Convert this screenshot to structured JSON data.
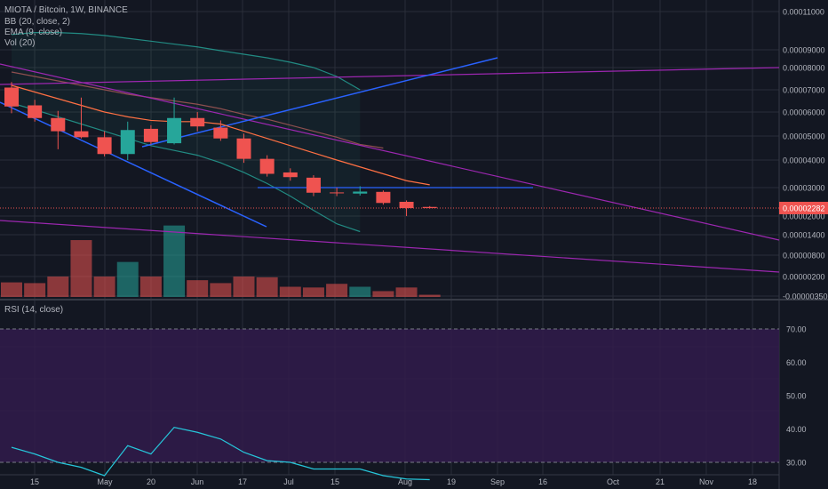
{
  "legend": {
    "title": "MIOTA / Bitcoin, 1W, BINANCE",
    "bb": "BB (20, close, 2)",
    "ema": "EMA (9, close)",
    "vol": "Vol (20)",
    "rsi": "RSI (14, close)"
  },
  "colors": {
    "background": "#131722",
    "grid": "#2a2e39",
    "up": "#26a69a",
    "down": "#ef5350",
    "bb_band": "#26a69a",
    "bb_basis": "#8d4f4f",
    "ema": "#ff7043",
    "trendline_blue": "#2962ff",
    "trendline_purple": "#9c27b0",
    "rsi_line": "#26c6da",
    "rsi_band_fill": "#311b4b",
    "price_tag": "#ef5350",
    "label_text": "#b2b5be"
  },
  "chart_data": [
    {
      "type": "candlestick",
      "title": "MIOTA / Bitcoin, 1W, BINANCE",
      "y_scale": "linear",
      "y_ticks": [
        "0.00011000",
        "0.00009000",
        "0.00008000",
        "0.00007000",
        "0.00006000",
        "0.00005000",
        "0.00004000",
        "0.00003000",
        "0.00002000",
        "0.00001400",
        "0.00000800",
        "0.00000200",
        "-0.00000350"
      ],
      "last_price_label": "0.00002282",
      "x_ticks": [
        "15",
        "May",
        "20",
        "Jun",
        "17",
        "Jul",
        "15",
        "Aug",
        "19",
        "Sep",
        "16",
        "Oct",
        "21",
        "Nov",
        "18"
      ],
      "candles": [
        {
          "o": 7.1e-05,
          "h": 7.35e-05,
          "l": 5.95e-05,
          "c": 6.25e-05
        },
        {
          "o": 6.3e-05,
          "h": 6.55e-05,
          "l": 5.6e-05,
          "c": 5.75e-05
        },
        {
          "o": 5.75e-05,
          "h": 6.05e-05,
          "l": 4.45e-05,
          "c": 5.2e-05
        },
        {
          "o": 5.2e-05,
          "h": 6.65e-05,
          "l": 4.9e-05,
          "c": 4.95e-05
        },
        {
          "o": 4.95e-05,
          "h": 5.2e-05,
          "l": 4.15e-05,
          "c": 4.25e-05
        },
        {
          "o": 4.25e-05,
          "h": 5.6e-05,
          "l": 4e-05,
          "c": 5.25e-05
        },
        {
          "o": 5.3e-05,
          "h": 5.45e-05,
          "l": 4.65e-05,
          "c": 4.75e-05
        },
        {
          "o": 4.7e-05,
          "h": 6.65e-05,
          "l": 4.65e-05,
          "c": 5.75e-05
        },
        {
          "o": 5.75e-05,
          "h": 6e-05,
          "l": 5.2e-05,
          "c": 5.4e-05
        },
        {
          "o": 5.35e-05,
          "h": 5.65e-05,
          "l": 4.8e-05,
          "c": 4.9e-05
        },
        {
          "o": 4.9e-05,
          "h": 5.1e-05,
          "l": 3.9e-05,
          "c": 4.05e-05
        },
        {
          "o": 4.05e-05,
          "h": 4.2e-05,
          "l": 3.4e-05,
          "c": 3.5e-05
        },
        {
          "o": 3.55e-05,
          "h": 3.7e-05,
          "l": 3.25e-05,
          "c": 3.38e-05
        },
        {
          "o": 3.36e-05,
          "h": 3.45e-05,
          "l": 2.7e-05,
          "c": 2.82e-05
        },
        {
          "o": 2.83e-05,
          "h": 3e-05,
          "l": 2.7e-05,
          "c": 2.81e-05
        },
        {
          "o": 2.79e-05,
          "h": 3.05e-05,
          "l": 2.72e-05,
          "c": 2.86e-05
        },
        {
          "o": 2.85e-05,
          "h": 2.9e-05,
          "l": 2.4e-05,
          "c": 2.46e-05
        },
        {
          "o": 2.5e-05,
          "h": 2.55e-05,
          "l": 2e-05,
          "c": 2.28e-05
        },
        {
          "o": 2.32e-05,
          "h": 2.35e-05,
          "l": 2.26e-05,
          "c": 2.28e-05
        }
      ],
      "volume": [
        0.2,
        0.19,
        0.28,
        0.78,
        0.28,
        0.48,
        0.28,
        0.98,
        0.23,
        0.19,
        0.28,
        0.27,
        0.14,
        0.13,
        0.18,
        0.14,
        0.08,
        0.13,
        0.03
      ],
      "bb_upper": [
        9.8e-05,
        9.9e-05,
        9.9e-05,
        9.85e-05,
        9.75e-05,
        9.6e-05,
        9.45e-05,
        9.3e-05,
        9.15e-05,
        8.95e-05,
        8.75e-05,
        8.55e-05,
        8.3e-05,
        8e-05,
        7.6e-05,
        7e-05
      ],
      "bb_basis": [
        7.8e-05,
        7.6e-05,
        7.4e-05,
        7.2e-05,
        7e-05,
        6.8e-05,
        6.65e-05,
        6.5e-05,
        6.35e-05,
        6.15e-05,
        5.9e-05,
        5.7e-05,
        5.45e-05,
        5.2e-05,
        4.95e-05,
        4.65e-05,
        4.5e-05
      ],
      "bb_lower": [
        6.4e-05,
        6.1e-05,
        5.8e-05,
        5.5e-05,
        5.2e-05,
        4.9e-05,
        4.6e-05,
        4.4e-05,
        4.2e-05,
        3.9e-05,
        3.55e-05,
        3.15e-05,
        2.7e-05,
        2.2e-05,
        1.75e-05,
        1.5e-05
      ],
      "ema": [
        7.2e-05,
        6.9e-05,
        6.6e-05,
        6.3e-05,
        6e-05,
        5.8e-05,
        5.65e-05,
        5.6e-05,
        5.6e-05,
        5.5e-05,
        5.2e-05,
        4.9e-05,
        4.6e-05,
        4.3e-05,
        4e-05,
        3.75e-05,
        3.5e-05,
        3.25e-05,
        3.1e-05
      ]
    },
    {
      "type": "line",
      "title": "RSI (14, close)",
      "y_ticks": [
        "70.00",
        "60.00",
        "50.00",
        "40.00",
        "30.00"
      ],
      "ylim": [
        22,
        78
      ],
      "bands": [
        30,
        70
      ],
      "values": [
        34.5,
        32.5,
        30.0,
        28.5,
        26.0,
        35.0,
        32.5,
        40.5,
        39.0,
        37.0,
        33.0,
        30.5,
        30.0,
        28.0,
        28.0,
        28.0,
        26.0,
        25.0,
        24.8
      ]
    }
  ]
}
